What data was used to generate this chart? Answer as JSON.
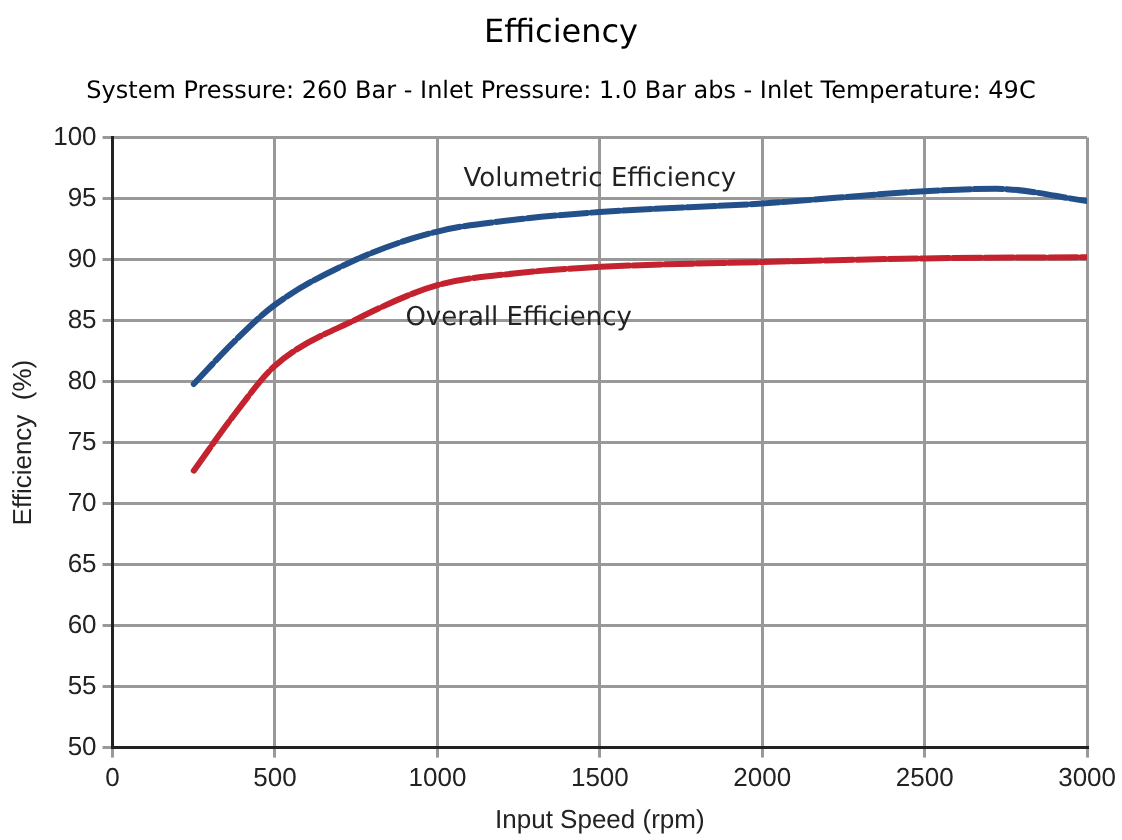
{
  "chart_data": {
    "type": "line",
    "title": "Efficiency",
    "subtitle": "System Pressure: 260 Bar - Inlet Pressure: 1.0 Bar abs - Inlet Temperature: 49C",
    "xlabel": "Input Speed (rpm)",
    "ylabel": "Efficiency  (%)",
    "series": [
      {
        "name": "Volumetric Efficiency",
        "color": "#24508a",
        "x": [
          250,
          375,
          500,
          750,
          1000,
          1250,
          1500,
          2000,
          2500,
          2720,
          3000
        ],
        "values": [
          79.8,
          83.3,
          86.3,
          90,
          92.3,
          93.3,
          93.9,
          94.6,
          95.6,
          95.8,
          94.8
        ]
      },
      {
        "name": "Overall Efficiency",
        "color": "#c4222e",
        "x": [
          250,
          375,
          500,
          750,
          1000,
          1250,
          1500,
          2000,
          2500,
          3000
        ],
        "values": [
          72.7,
          77.3,
          81.3,
          85.1,
          87.9,
          88.9,
          89.4,
          89.8,
          90.1,
          90.2
        ]
      }
    ],
    "xlim": [
      0,
      3000
    ],
    "xticks": [
      0,
      500,
      1000,
      1500,
      2000,
      2500,
      3000
    ],
    "ylim": [
      50,
      100
    ],
    "yticks": [
      50,
      55,
      60,
      65,
      70,
      75,
      80,
      85,
      90,
      95,
      100
    ],
    "grid": true,
    "legend": false,
    "marker": "none",
    "line_style": "dashed"
  }
}
